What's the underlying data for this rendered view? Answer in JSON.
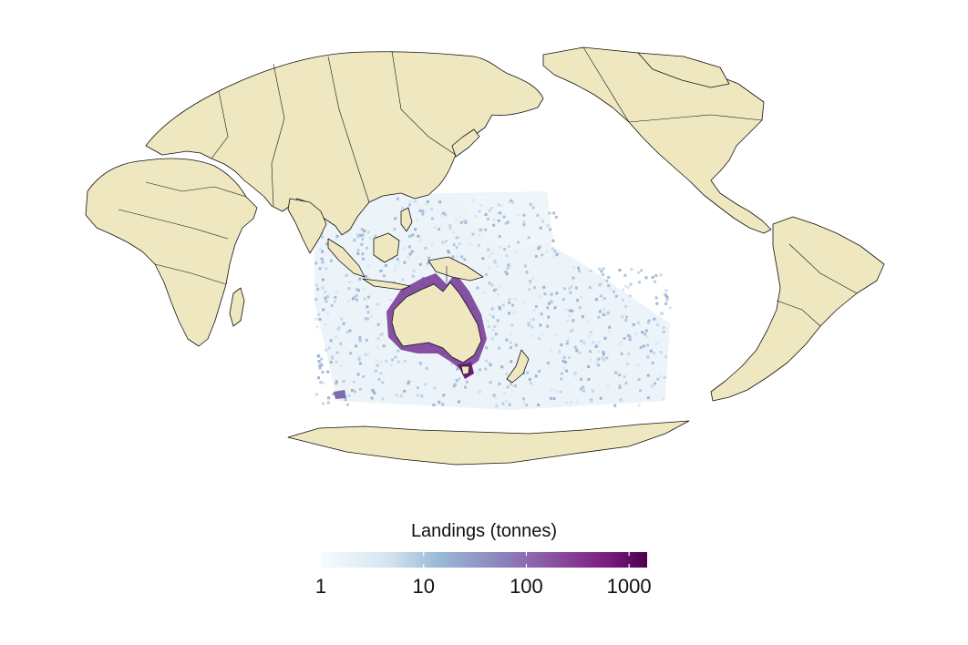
{
  "map": {
    "projection": "pacific-centered pseudo-cylindrical world map",
    "land_color": "#efe7c0",
    "coastline_color": "#111111",
    "data_layer": "gridded fishing landings around Australia and the Indian / south-west Pacific Ocean"
  },
  "legend": {
    "title": "Landings (tonnes)",
    "scale": "log",
    "range": [
      1,
      1500
    ],
    "ticks": [
      {
        "value": 1,
        "label": "1"
      },
      {
        "value": 10,
        "label": "10"
      },
      {
        "value": 100,
        "label": "100"
      },
      {
        "value": 1000,
        "label": "1000"
      }
    ],
    "colors": [
      "#f7fbfd",
      "#c7dcea",
      "#8fb4d2",
      "#8c78b5",
      "#8a4a9d",
      "#7a1a7f",
      "#4d004b"
    ]
  }
}
